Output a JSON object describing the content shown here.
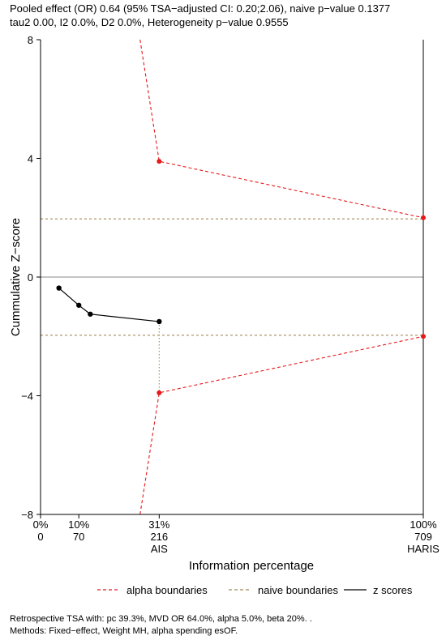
{
  "header": {
    "line1": "Pooled effect (OR) 0.64 (95% TSA−adjusted CI: 0.20;2.06), naive p−value 0.1377",
    "line2": "tau2 0.00, I2 0.0%, D2 0.0%, Heterogeneity p−value 0.9555"
  },
  "footer": {
    "line1": "Retrospective TSA with: pc 39.3%, MVD OR 64.0%, alpha 5.0%, beta 20%. .",
    "line2": "Methods: Fixed−effect, Weight MH, alpha spending esOF."
  },
  "chart_data": {
    "type": "line",
    "xlabel": "Information percentage",
    "ylabel": "Cummulative Z−score",
    "xlim": [
      0,
      100
    ],
    "ylim": [
      -8,
      8
    ],
    "y_ticks": [
      {
        "value": 8,
        "label": "8"
      },
      {
        "value": 4,
        "label": "4"
      },
      {
        "value": 0,
        "label": "0"
      },
      {
        "value": -4,
        "label": "−4"
      },
      {
        "value": -8,
        "label": "−8"
      }
    ],
    "x_ticks": [
      {
        "value": 0,
        "pct": "0%",
        "size": "0",
        "name": ""
      },
      {
        "value": 10,
        "pct": "10%",
        "size": "70",
        "name": ""
      },
      {
        "value": 31,
        "pct": "31%",
        "size": "216",
        "name": "AIS"
      },
      {
        "value": 100,
        "pct": "100%",
        "size": "709",
        "name": "HARIS"
      }
    ],
    "series": [
      {
        "name": "z scores",
        "style": "solid",
        "color": "#000000",
        "x": [
          4.8,
          10,
          13,
          31
        ],
        "y": [
          -0.37,
          -0.95,
          -1.25,
          -1.5
        ],
        "markers": true
      },
      {
        "name": "alpha boundaries",
        "style": "dashed",
        "color": "#e41a1c",
        "segments": [
          {
            "x": [
              26,
              31,
              100
            ],
            "y": [
              8,
              3.9,
              2.0
            ],
            "markers": [
              false,
              true,
              true
            ]
          },
          {
            "x": [
              26,
              31,
              100
            ],
            "y": [
              -8,
              -3.9,
              -2.0
            ],
            "markers": [
              false,
              true,
              true
            ]
          }
        ]
      },
      {
        "name": "naive boundaries",
        "style": "dashed",
        "color": "#a08a5a",
        "h_lines": [
          1.96,
          -1.96
        ]
      }
    ],
    "reference_lines": {
      "zero": 0,
      "vertical_dotted_at_x": 31,
      "vertical_dotted_y": [
        -1.5,
        -3.9
      ],
      "vertical_solid_at_x": 100
    },
    "legend": {
      "position": "bottom",
      "items": [
        {
          "label": "alpha boundaries",
          "style": "dashed",
          "color": "#e41a1c"
        },
        {
          "label": "naive boundaries",
          "style": "dashed",
          "color": "#a08a5a"
        },
        {
          "label": "z scores",
          "style": "solid",
          "color": "#000000"
        }
      ]
    }
  }
}
